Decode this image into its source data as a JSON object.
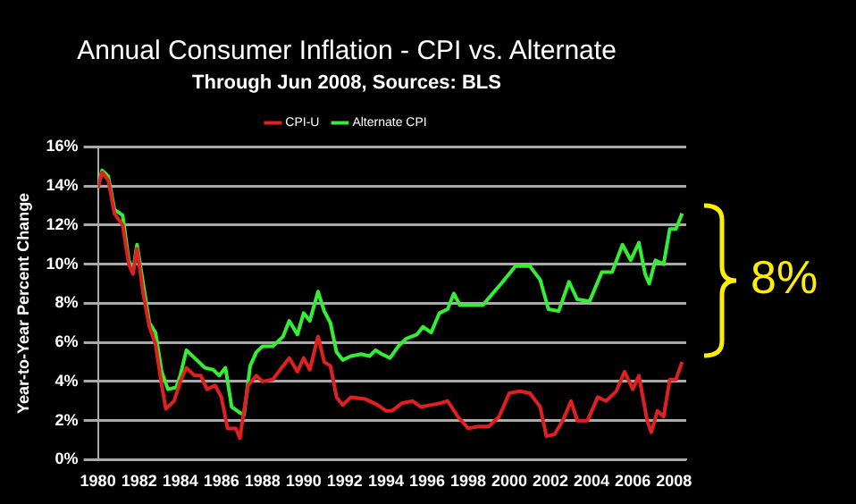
{
  "chart_data": {
    "type": "line",
    "title": "Annual Consumer Inflation - CPI vs. Alternate",
    "subtitle": "Through Jun 2008, Sources: BLS",
    "ylabel": "Year-to-Year Percent Change",
    "series": [
      {
        "name": "CPI-U",
        "color": "#e02020",
        "x": [
          1980.0,
          1980.2,
          1980.5,
          1980.8,
          1981.2,
          1981.5,
          1981.7,
          1981.9,
          1982.2,
          1982.5,
          1982.8,
          1983.1,
          1983.3,
          1983.7,
          1984.0,
          1984.3,
          1984.7,
          1985.0,
          1985.3,
          1985.7,
          1986.0,
          1986.3,
          1986.7,
          1986.9,
          1987.1,
          1987.3,
          1987.7,
          1988.0,
          1988.5,
          1989.0,
          1989.3,
          1989.7,
          1990.0,
          1990.3,
          1990.7,
          1991.0,
          1991.3,
          1991.6,
          1991.9,
          1992.3,
          1993.0,
          1993.6,
          1994.0,
          1994.3,
          1994.8,
          1995.3,
          1995.7,
          1996.2,
          1996.7,
          1997.0,
          1997.5,
          1998.0,
          1998.5,
          1999.0,
          1999.5,
          2000.0,
          2000.5,
          2001.0,
          2001.5,
          2001.8,
          2002.2,
          2002.6,
          2003.0,
          2003.3,
          2003.8,
          2004.3,
          2004.7,
          2005.2,
          2005.6,
          2006.0,
          2006.3,
          2006.7,
          2006.9,
          2007.2,
          2007.5,
          2007.8,
          2008.1,
          2008.4
        ],
        "values": [
          13.9,
          14.7,
          14.3,
          12.6,
          12.0,
          10.0,
          9.5,
          10.8,
          8.5,
          6.8,
          5.9,
          3.8,
          2.6,
          3.0,
          4.0,
          4.7,
          4.3,
          4.3,
          3.6,
          3.8,
          3.2,
          1.6,
          1.6,
          1.1,
          2.5,
          3.8,
          4.3,
          4.0,
          4.1,
          4.8,
          5.2,
          4.5,
          5.2,
          4.6,
          6.3,
          5.0,
          4.8,
          3.2,
          2.8,
          3.2,
          3.1,
          2.8,
          2.5,
          2.5,
          2.9,
          3.0,
          2.7,
          2.8,
          2.9,
          3.0,
          2.2,
          1.6,
          1.7,
          1.7,
          2.2,
          3.4,
          3.5,
          3.4,
          2.7,
          1.2,
          1.3,
          2.0,
          3.0,
          2.0,
          2.0,
          3.2,
          3.0,
          3.5,
          4.5,
          3.6,
          4.3,
          2.0,
          1.4,
          2.5,
          2.2,
          4.1,
          4.1,
          5.0
        ]
      },
      {
        "name": "Alternate CPI",
        "color": "#33ee33",
        "x": [
          1980.0,
          1980.2,
          1980.5,
          1980.8,
          1981.2,
          1981.5,
          1981.7,
          1981.9,
          1982.2,
          1982.5,
          1982.8,
          1983.1,
          1983.4,
          1983.8,
          1984.0,
          1984.3,
          1984.7,
          1985.2,
          1985.6,
          1985.9,
          1986.2,
          1986.5,
          1986.9,
          1987.1,
          1987.4,
          1987.7,
          1988.0,
          1988.5,
          1989.0,
          1989.3,
          1989.7,
          1990.0,
          1990.3,
          1990.7,
          1991.0,
          1991.3,
          1991.6,
          1991.9,
          1992.3,
          1992.8,
          1993.2,
          1993.5,
          1993.8,
          1994.2,
          1994.6,
          1995.0,
          1995.5,
          1995.8,
          1996.2,
          1996.6,
          1997.0,
          1997.3,
          1997.6,
          1998.7,
          1999.6,
          2000.3,
          2001.0,
          2001.5,
          2001.9,
          2002.4,
          2002.9,
          2003.3,
          2003.9,
          2004.5,
          2005.0,
          2005.5,
          2005.9,
          2006.3,
          2006.6,
          2006.8,
          2007.1,
          2007.5,
          2007.8,
          2008.1,
          2008.4
        ],
        "values": [
          13.9,
          14.8,
          14.5,
          12.8,
          12.5,
          10.2,
          9.6,
          11.0,
          9.0,
          7.0,
          6.5,
          4.5,
          3.6,
          3.7,
          4.3,
          5.6,
          5.2,
          4.7,
          4.6,
          4.3,
          4.7,
          2.7,
          2.4,
          2.3,
          4.8,
          5.5,
          5.8,
          5.8,
          6.3,
          7.1,
          6.4,
          7.5,
          7.1,
          8.6,
          7.6,
          7.0,
          5.5,
          5.1,
          5.3,
          5.4,
          5.3,
          5.6,
          5.4,
          5.2,
          5.8,
          6.2,
          6.4,
          6.8,
          6.5,
          7.5,
          7.7,
          8.5,
          7.9,
          7.9,
          9.0,
          9.9,
          9.9,
          9.2,
          7.7,
          7.6,
          9.1,
          8.2,
          8.1,
          9.6,
          9.6,
          11.0,
          10.2,
          11.1,
          9.5,
          9.0,
          10.2,
          10.0,
          11.8,
          11.8,
          12.6
        ]
      }
    ],
    "xlim": [
      1980,
      2008.6
    ],
    "xticks": [
      1980,
      1982,
      1984,
      1986,
      1988,
      1990,
      1992,
      1994,
      1996,
      1998,
      2000,
      2002,
      2004,
      2006,
      2008
    ],
    "ylim": [
      0,
      16
    ],
    "yticks": [
      {
        "value": 0,
        "label": "0%"
      },
      {
        "value": 2,
        "label": "2%"
      },
      {
        "value": 4,
        "label": "4%"
      },
      {
        "value": 6,
        "label": "6%"
      },
      {
        "value": 8,
        "label": "8%"
      },
      {
        "value": 10,
        "label": "10%"
      },
      {
        "value": 12,
        "label": "12%"
      },
      {
        "value": 14,
        "label": "14%"
      },
      {
        "value": 16,
        "label": "16%"
      }
    ],
    "grid": "y",
    "legend": "top",
    "marker": "none",
    "line_style": "solid",
    "annotations": [
      "8%"
    ]
  }
}
